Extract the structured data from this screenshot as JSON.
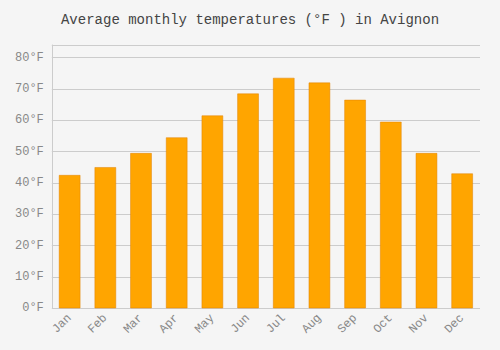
{
  "chart_data": {
    "type": "bar",
    "title": "Average monthly temperatures (°F ) in Avignon",
    "categories": [
      "Jan",
      "Feb",
      "Mar",
      "Apr",
      "May",
      "Jun",
      "Jul",
      "Aug",
      "Sep",
      "Oct",
      "Nov",
      "Dec"
    ],
    "values": [
      42.5,
      45.0,
      49.5,
      54.5,
      61.5,
      68.5,
      73.5,
      72.0,
      66.5,
      59.5,
      49.5,
      43.0
    ],
    "color": "#FFA500",
    "ylim": [
      0,
      84
    ],
    "yticks": [
      {
        "value": 0,
        "label": "0°F"
      },
      {
        "value": 10,
        "label": "10°F"
      },
      {
        "value": 20,
        "label": "20°F"
      },
      {
        "value": 30,
        "label": "30°F"
      },
      {
        "value": 40,
        "label": "40°F"
      },
      {
        "value": 50,
        "label": "50°F"
      },
      {
        "value": 60,
        "label": "60°F"
      },
      {
        "value": 70,
        "label": "70°F"
      },
      {
        "value": 80,
        "label": "80°F"
      }
    ],
    "grid": true
  }
}
